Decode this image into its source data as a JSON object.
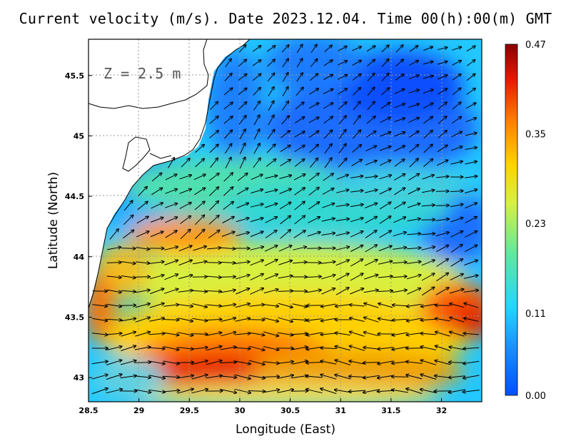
{
  "title": "Current velocity (m/s). Date 2023.12.04. Time 00(h):00(m) GMT",
  "depth_label": "Z = 2.5 m",
  "xlabel": "Longitude (East)",
  "ylabel": "Latitude (North)",
  "x_ticks": [
    "28.5",
    "29",
    "29.5",
    "30",
    "30.5",
    "31",
    "31.5",
    "32"
  ],
  "y_ticks": [
    "43",
    "43.5",
    "44",
    "44.5",
    "45",
    "45.5"
  ],
  "colorbar": {
    "ticks": [
      "0.00",
      "0.11",
      "0.23",
      "0.35",
      "0.47"
    ],
    "min": 0.0,
    "max": 0.47,
    "colors": [
      "#0050ff",
      "#1a8cff",
      "#22d6ff",
      "#5ee8a0",
      "#d8f040",
      "#ffd200",
      "#ff8000",
      "#e81800",
      "#8c0000"
    ]
  },
  "chart_data": {
    "type": "heatmap",
    "title": "Current velocity (m/s). Date 2023.12.04. Time 00(h):00(m) GMT",
    "xlabel": "Longitude (East)",
    "ylabel": "Latitude (North)",
    "xlim": [
      28.5,
      32.4
    ],
    "ylim": [
      42.8,
      45.8
    ],
    "value_range": [
      0.0,
      0.47
    ],
    "grid": true
  }
}
